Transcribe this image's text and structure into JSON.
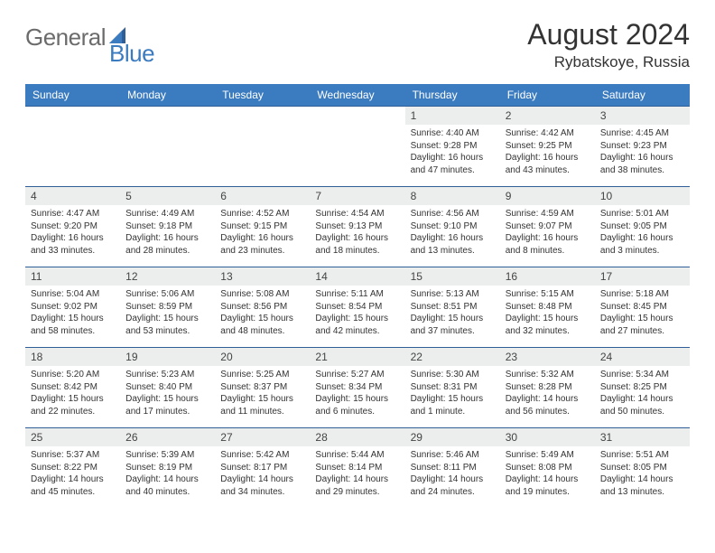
{
  "logo": {
    "general": "General",
    "blue": "Blue"
  },
  "title": "August 2024",
  "location": "Rybatskoye, Russia",
  "colors": {
    "header_bg": "#3b7bbf",
    "header_text": "#ffffff",
    "daynum_bg": "#eceded",
    "celltop_border": "#2f5f96",
    "body_text": "#333333",
    "logo_grey": "#6b6b6b",
    "logo_blue": "#3b7bbf"
  },
  "fonts": {
    "title_size_pt": 24,
    "location_size_pt": 13,
    "header_size_pt": 9,
    "daynum_size_pt": 9,
    "cell_size_pt": 7.5
  },
  "day_headers": [
    "Sunday",
    "Monday",
    "Tuesday",
    "Wednesday",
    "Thursday",
    "Friday",
    "Saturday"
  ],
  "weeks": [
    [
      {
        "n": "",
        "sr": "",
        "ss": "",
        "dl": ""
      },
      {
        "n": "",
        "sr": "",
        "ss": "",
        "dl": ""
      },
      {
        "n": "",
        "sr": "",
        "ss": "",
        "dl": ""
      },
      {
        "n": "",
        "sr": "",
        "ss": "",
        "dl": ""
      },
      {
        "n": "1",
        "sr": "Sunrise: 4:40 AM",
        "ss": "Sunset: 9:28 PM",
        "dl": "Daylight: 16 hours and 47 minutes."
      },
      {
        "n": "2",
        "sr": "Sunrise: 4:42 AM",
        "ss": "Sunset: 9:25 PM",
        "dl": "Daylight: 16 hours and 43 minutes."
      },
      {
        "n": "3",
        "sr": "Sunrise: 4:45 AM",
        "ss": "Sunset: 9:23 PM",
        "dl": "Daylight: 16 hours and 38 minutes."
      }
    ],
    [
      {
        "n": "4",
        "sr": "Sunrise: 4:47 AM",
        "ss": "Sunset: 9:20 PM",
        "dl": "Daylight: 16 hours and 33 minutes."
      },
      {
        "n": "5",
        "sr": "Sunrise: 4:49 AM",
        "ss": "Sunset: 9:18 PM",
        "dl": "Daylight: 16 hours and 28 minutes."
      },
      {
        "n": "6",
        "sr": "Sunrise: 4:52 AM",
        "ss": "Sunset: 9:15 PM",
        "dl": "Daylight: 16 hours and 23 minutes."
      },
      {
        "n": "7",
        "sr": "Sunrise: 4:54 AM",
        "ss": "Sunset: 9:13 PM",
        "dl": "Daylight: 16 hours and 18 minutes."
      },
      {
        "n": "8",
        "sr": "Sunrise: 4:56 AM",
        "ss": "Sunset: 9:10 PM",
        "dl": "Daylight: 16 hours and 13 minutes."
      },
      {
        "n": "9",
        "sr": "Sunrise: 4:59 AM",
        "ss": "Sunset: 9:07 PM",
        "dl": "Daylight: 16 hours and 8 minutes."
      },
      {
        "n": "10",
        "sr": "Sunrise: 5:01 AM",
        "ss": "Sunset: 9:05 PM",
        "dl": "Daylight: 16 hours and 3 minutes."
      }
    ],
    [
      {
        "n": "11",
        "sr": "Sunrise: 5:04 AM",
        "ss": "Sunset: 9:02 PM",
        "dl": "Daylight: 15 hours and 58 minutes."
      },
      {
        "n": "12",
        "sr": "Sunrise: 5:06 AM",
        "ss": "Sunset: 8:59 PM",
        "dl": "Daylight: 15 hours and 53 minutes."
      },
      {
        "n": "13",
        "sr": "Sunrise: 5:08 AM",
        "ss": "Sunset: 8:56 PM",
        "dl": "Daylight: 15 hours and 48 minutes."
      },
      {
        "n": "14",
        "sr": "Sunrise: 5:11 AM",
        "ss": "Sunset: 8:54 PM",
        "dl": "Daylight: 15 hours and 42 minutes."
      },
      {
        "n": "15",
        "sr": "Sunrise: 5:13 AM",
        "ss": "Sunset: 8:51 PM",
        "dl": "Daylight: 15 hours and 37 minutes."
      },
      {
        "n": "16",
        "sr": "Sunrise: 5:15 AM",
        "ss": "Sunset: 8:48 PM",
        "dl": "Daylight: 15 hours and 32 minutes."
      },
      {
        "n": "17",
        "sr": "Sunrise: 5:18 AM",
        "ss": "Sunset: 8:45 PM",
        "dl": "Daylight: 15 hours and 27 minutes."
      }
    ],
    [
      {
        "n": "18",
        "sr": "Sunrise: 5:20 AM",
        "ss": "Sunset: 8:42 PM",
        "dl": "Daylight: 15 hours and 22 minutes."
      },
      {
        "n": "19",
        "sr": "Sunrise: 5:23 AM",
        "ss": "Sunset: 8:40 PM",
        "dl": "Daylight: 15 hours and 17 minutes."
      },
      {
        "n": "20",
        "sr": "Sunrise: 5:25 AM",
        "ss": "Sunset: 8:37 PM",
        "dl": "Daylight: 15 hours and 11 minutes."
      },
      {
        "n": "21",
        "sr": "Sunrise: 5:27 AM",
        "ss": "Sunset: 8:34 PM",
        "dl": "Daylight: 15 hours and 6 minutes."
      },
      {
        "n": "22",
        "sr": "Sunrise: 5:30 AM",
        "ss": "Sunset: 8:31 PM",
        "dl": "Daylight: 15 hours and 1 minute."
      },
      {
        "n": "23",
        "sr": "Sunrise: 5:32 AM",
        "ss": "Sunset: 8:28 PM",
        "dl": "Daylight: 14 hours and 56 minutes."
      },
      {
        "n": "24",
        "sr": "Sunrise: 5:34 AM",
        "ss": "Sunset: 8:25 PM",
        "dl": "Daylight: 14 hours and 50 minutes."
      }
    ],
    [
      {
        "n": "25",
        "sr": "Sunrise: 5:37 AM",
        "ss": "Sunset: 8:22 PM",
        "dl": "Daylight: 14 hours and 45 minutes."
      },
      {
        "n": "26",
        "sr": "Sunrise: 5:39 AM",
        "ss": "Sunset: 8:19 PM",
        "dl": "Daylight: 14 hours and 40 minutes."
      },
      {
        "n": "27",
        "sr": "Sunrise: 5:42 AM",
        "ss": "Sunset: 8:17 PM",
        "dl": "Daylight: 14 hours and 34 minutes."
      },
      {
        "n": "28",
        "sr": "Sunrise: 5:44 AM",
        "ss": "Sunset: 8:14 PM",
        "dl": "Daylight: 14 hours and 29 minutes."
      },
      {
        "n": "29",
        "sr": "Sunrise: 5:46 AM",
        "ss": "Sunset: 8:11 PM",
        "dl": "Daylight: 14 hours and 24 minutes."
      },
      {
        "n": "30",
        "sr": "Sunrise: 5:49 AM",
        "ss": "Sunset: 8:08 PM",
        "dl": "Daylight: 14 hours and 19 minutes."
      },
      {
        "n": "31",
        "sr": "Sunrise: 5:51 AM",
        "ss": "Sunset: 8:05 PM",
        "dl": "Daylight: 14 hours and 13 minutes."
      }
    ]
  ]
}
